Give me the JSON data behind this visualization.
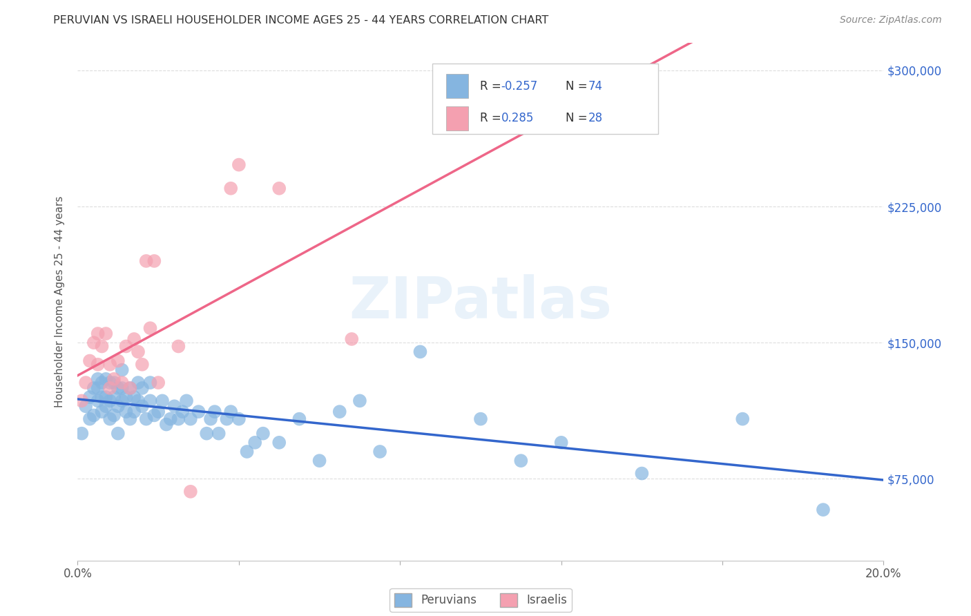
{
  "title": "PERUVIAN VS ISRAELI HOUSEHOLDER INCOME AGES 25 - 44 YEARS CORRELATION CHART",
  "source": "Source: ZipAtlas.com",
  "ylabel": "Householder Income Ages 25 - 44 years",
  "ytick_labels": [
    "$75,000",
    "$150,000",
    "$225,000",
    "$300,000"
  ],
  "ytick_values": [
    75000,
    150000,
    225000,
    300000
  ],
  "ymin": 30000,
  "ymax": 315000,
  "xmin": 0.0,
  "xmax": 0.2,
  "legend_r_blue": "-0.257",
  "legend_n_blue": "74",
  "legend_r_pink": "0.285",
  "legend_n_pink": "28",
  "legend_label_peruvians": "Peruvians",
  "legend_label_israelis": "Israelis",
  "blue_color": "#85B5E0",
  "pink_color": "#F4A0B0",
  "line_blue_color": "#3366CC",
  "line_pink_color": "#EE6688",
  "text_blue": "#3366CC",
  "watermark": "ZIPatlas",
  "background_color": "#FFFFFF",
  "grid_color": "#DDDDDD",
  "blue_scatter_x": [
    0.001,
    0.002,
    0.003,
    0.003,
    0.004,
    0.004,
    0.005,
    0.005,
    0.005,
    0.006,
    0.006,
    0.006,
    0.007,
    0.007,
    0.007,
    0.008,
    0.008,
    0.008,
    0.009,
    0.009,
    0.009,
    0.01,
    0.01,
    0.01,
    0.011,
    0.011,
    0.011,
    0.012,
    0.012,
    0.013,
    0.013,
    0.014,
    0.014,
    0.015,
    0.015,
    0.016,
    0.016,
    0.017,
    0.018,
    0.018,
    0.019,
    0.02,
    0.021,
    0.022,
    0.023,
    0.024,
    0.025,
    0.026,
    0.027,
    0.028,
    0.03,
    0.032,
    0.033,
    0.034,
    0.035,
    0.037,
    0.038,
    0.04,
    0.042,
    0.044,
    0.046,
    0.05,
    0.055,
    0.06,
    0.065,
    0.07,
    0.075,
    0.085,
    0.1,
    0.11,
    0.12,
    0.14,
    0.165,
    0.185
  ],
  "blue_scatter_y": [
    100000,
    115000,
    108000,
    120000,
    110000,
    125000,
    118000,
    125000,
    130000,
    112000,
    120000,
    128000,
    115000,
    120000,
    130000,
    108000,
    118000,
    128000,
    110000,
    120000,
    128000,
    100000,
    115000,
    125000,
    118000,
    125000,
    135000,
    112000,
    120000,
    108000,
    125000,
    112000,
    120000,
    118000,
    128000,
    115000,
    125000,
    108000,
    118000,
    128000,
    110000,
    112000,
    118000,
    105000,
    108000,
    115000,
    108000,
    112000,
    118000,
    108000,
    112000,
    100000,
    108000,
    112000,
    100000,
    108000,
    112000,
    108000,
    90000,
    95000,
    100000,
    95000,
    108000,
    85000,
    112000,
    118000,
    90000,
    145000,
    108000,
    85000,
    95000,
    78000,
    108000,
    58000
  ],
  "pink_scatter_x": [
    0.001,
    0.002,
    0.003,
    0.004,
    0.005,
    0.005,
    0.006,
    0.007,
    0.008,
    0.008,
    0.009,
    0.01,
    0.011,
    0.012,
    0.013,
    0.014,
    0.015,
    0.016,
    0.017,
    0.018,
    0.019,
    0.02,
    0.025,
    0.028,
    0.038,
    0.04,
    0.05,
    0.068
  ],
  "pink_scatter_y": [
    118000,
    128000,
    140000,
    150000,
    138000,
    155000,
    148000,
    155000,
    125000,
    138000,
    130000,
    140000,
    128000,
    148000,
    125000,
    152000,
    145000,
    138000,
    195000,
    158000,
    195000,
    128000,
    148000,
    68000,
    235000,
    248000,
    235000,
    152000
  ]
}
